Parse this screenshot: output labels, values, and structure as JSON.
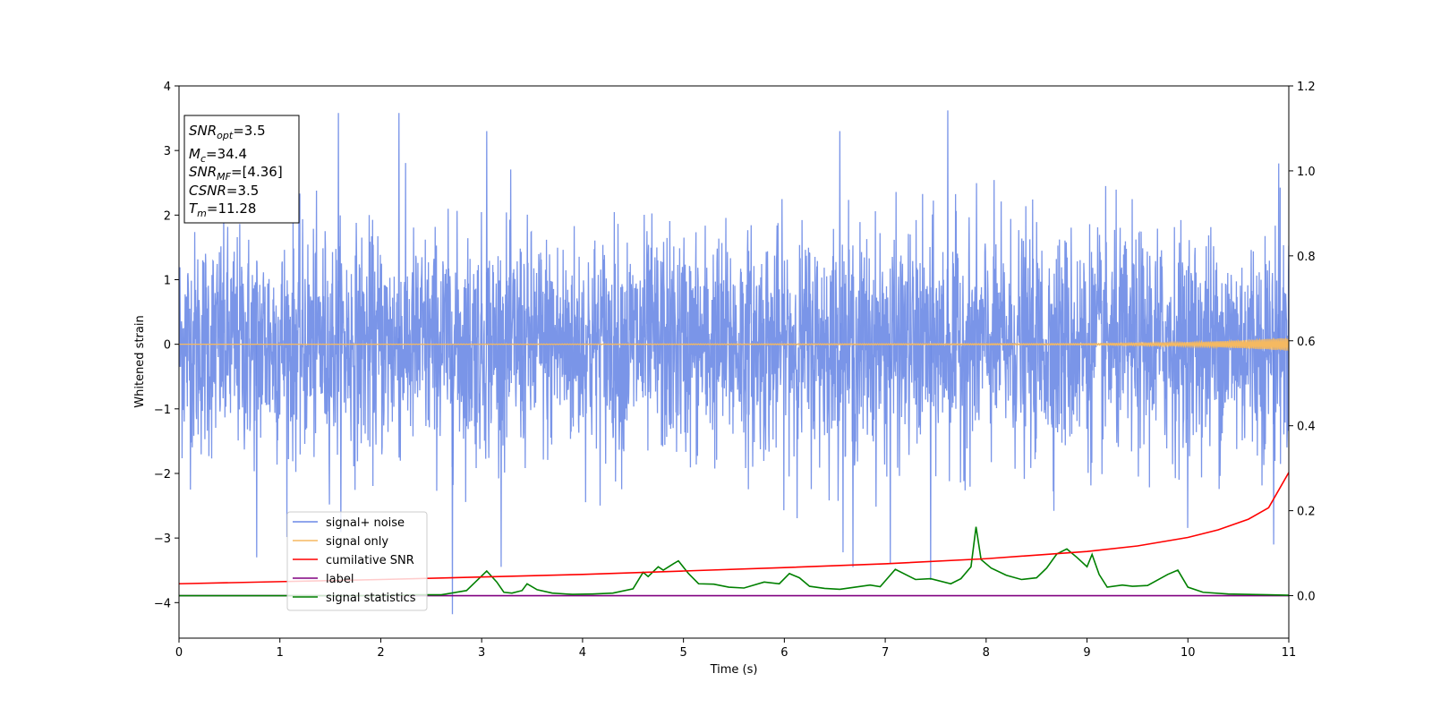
{
  "chart_data": {
    "type": "line",
    "xlabel": "Time (s)",
    "ylabel": "Whitened strain",
    "xlim": [
      0,
      11
    ],
    "ylim": [
      -4.55,
      4.0
    ],
    "y2lim": [
      -0.1,
      1.2
    ],
    "x_ticks": [
      0,
      1,
      2,
      3,
      4,
      5,
      6,
      7,
      8,
      9,
      10,
      11
    ],
    "y_ticks": [
      -4,
      -3,
      -2,
      -1,
      0,
      1,
      2,
      3,
      4
    ],
    "y_tick_labels": [
      "−4",
      "−3",
      "−2",
      "−1",
      "0",
      "1",
      "2",
      "3",
      "4"
    ],
    "y2_ticks": [
      0.0,
      0.2,
      0.4,
      0.6,
      0.8,
      1.0,
      1.2
    ],
    "y2_tick_labels": [
      "0.0",
      "0.2",
      "0.4",
      "0.6",
      "0.8",
      "1.0",
      "1.2"
    ],
    "grid": false,
    "legend_position": "lower-left",
    "colors": {
      "signal_noise": "#6b89e6",
      "signal_only": "#f5b961",
      "cumulative_snr": "#ff0000",
      "label": "#800080",
      "signal_statistics": "#008000"
    },
    "info_box": {
      "snr_opt": {
        "base": "SNR",
        "sub": "opt",
        "rest": "=3.5"
      },
      "mc": {
        "base": "M",
        "sub": "c",
        "rest": "=34.4"
      },
      "snr_mf": {
        "base": "SNR",
        "sub": "MF",
        "rest": "=[4.36]"
      },
      "csnr": {
        "base": "CSNR",
        "rest": "=3.5"
      },
      "tm": {
        "base": "T",
        "sub": "m",
        "rest": "=11.28"
      }
    },
    "series": [
      {
        "name": "signal+ noise",
        "axis": "left",
        "description_style": "noise",
        "envelope": {
          "typical_amplitude": 1.5,
          "max": 3.62,
          "min": -4.18
        },
        "peaks": [
          [
            1.58,
            3.58
          ],
          [
            2.18,
            3.58
          ],
          [
            7.62,
            3.62
          ],
          [
            3.05,
            3.3
          ],
          [
            6.55,
            3.3
          ],
          [
            10.9,
            2.8
          ]
        ],
        "troughs": [
          [
            2.71,
            -4.18
          ],
          [
            6.68,
            -3.45
          ],
          [
            7.45,
            -3.65
          ],
          [
            0.77,
            -3.3
          ],
          [
            10.85,
            -3.1
          ],
          [
            7.05,
            -3.4
          ]
        ]
      },
      {
        "name": "signal only",
        "axis": "left",
        "x": [
          0,
          9,
          10,
          10.5,
          11
        ],
        "amplitude": [
          0.0,
          0.01,
          0.03,
          0.06,
          0.1
        ]
      },
      {
        "name": "cumilative SNR",
        "axis": "right",
        "x": [
          0,
          1,
          2,
          3,
          4,
          5,
          6,
          7,
          8,
          9,
          9.5,
          10,
          10.3,
          10.6,
          10.8,
          11
        ],
        "values": [
          0.028,
          0.033,
          0.038,
          0.044,
          0.05,
          0.058,
          0.066,
          0.075,
          0.087,
          0.104,
          0.117,
          0.137,
          0.155,
          0.18,
          0.207,
          0.29
        ]
      },
      {
        "name": "label",
        "axis": "right",
        "x": [
          0,
          11
        ],
        "values": [
          0.0,
          0.0
        ]
      },
      {
        "name": "signal statistics",
        "axis": "right",
        "x": [
          0,
          0.3,
          0.6,
          1.0,
          1.5,
          2.0,
          2.3,
          2.6,
          2.85,
          2.95,
          3.05,
          3.15,
          3.22,
          3.3,
          3.4,
          3.45,
          3.55,
          3.7,
          3.9,
          4.1,
          4.3,
          4.5,
          4.6,
          4.65,
          4.75,
          4.8,
          4.9,
          4.95,
          5.05,
          5.15,
          5.3,
          5.45,
          5.6,
          5.8,
          5.95,
          6.05,
          6.15,
          6.25,
          6.4,
          6.55,
          6.7,
          6.85,
          6.95,
          7.1,
          7.3,
          7.45,
          7.65,
          7.75,
          7.85,
          7.9,
          7.95,
          8.05,
          8.2,
          8.35,
          8.5,
          8.6,
          8.7,
          8.8,
          8.9,
          9.0,
          9.05,
          9.12,
          9.2,
          9.35,
          9.45,
          9.6,
          9.8,
          9.9,
          10.0,
          10.15,
          10.4,
          10.8,
          11.0
        ],
        "values": [
          0.0,
          0.0,
          0.0,
          0.0,
          0.0,
          0.0,
          0.002,
          0.002,
          0.012,
          0.035,
          0.058,
          0.032,
          0.008,
          0.006,
          0.012,
          0.028,
          0.014,
          0.006,
          0.003,
          0.004,
          0.006,
          0.016,
          0.055,
          0.045,
          0.068,
          0.06,
          0.075,
          0.082,
          0.052,
          0.028,
          0.027,
          0.02,
          0.018,
          0.032,
          0.028,
          0.052,
          0.042,
          0.022,
          0.017,
          0.015,
          0.02,
          0.025,
          0.021,
          0.062,
          0.038,
          0.04,
          0.028,
          0.04,
          0.068,
          0.162,
          0.085,
          0.065,
          0.048,
          0.038,
          0.042,
          0.065,
          0.098,
          0.11,
          0.09,
          0.068,
          0.097,
          0.05,
          0.02,
          0.025,
          0.022,
          0.024,
          0.05,
          0.06,
          0.02,
          0.008,
          0.004,
          0.002,
          0.001
        ]
      }
    ]
  }
}
